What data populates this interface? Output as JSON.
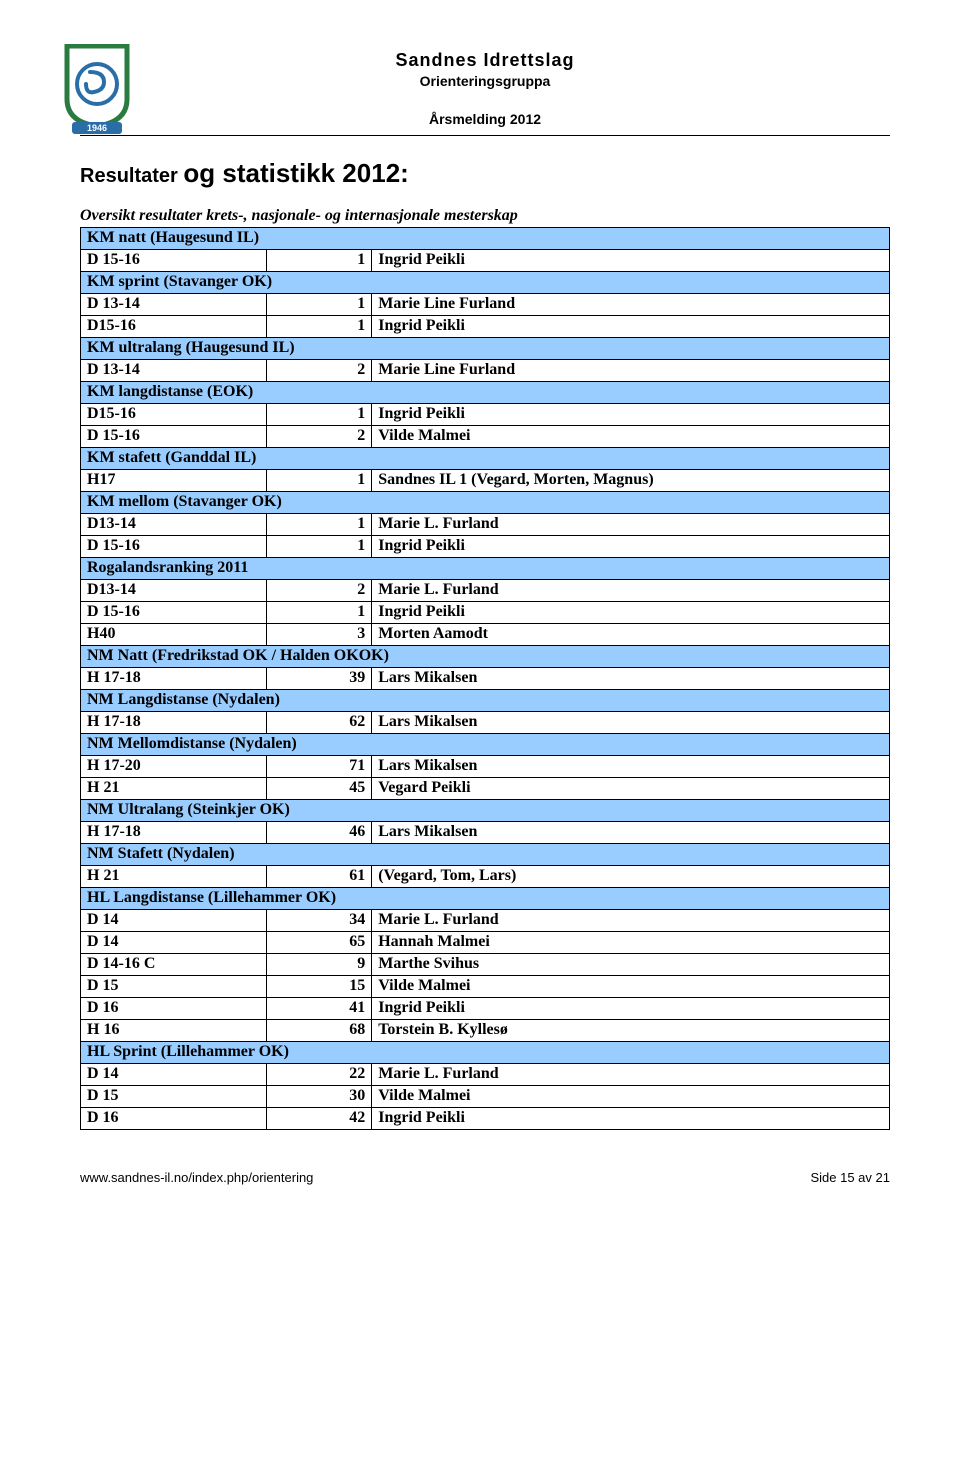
{
  "colors": {
    "section_bg": "#99ccff",
    "border": "#000000",
    "text": "#000000",
    "background": "#ffffff",
    "logo_green": "#2a7b3f",
    "logo_blue": "#2a6ea8",
    "logo_ribbon": "#2a6ea8"
  },
  "header": {
    "org": "Sandnes Idrettslag",
    "sub": "Orienteringsgruppa",
    "report": "Årsmelding 2012",
    "logo_year": "1946"
  },
  "title_small": "Resultater ",
  "title_big": "og statistikk 2012:",
  "subtitle": "Oversikt resultater krets-, nasjonale- og internasjonale mesterskap",
  "rows": [
    {
      "type": "section",
      "label": "KM natt (Haugesund IL)"
    },
    {
      "type": "data",
      "c1": "D 15-16",
      "c2": "1",
      "c3": "Ingrid Peikli"
    },
    {
      "type": "section",
      "label": "KM sprint (Stavanger OK)"
    },
    {
      "type": "data",
      "c1": "D 13-14",
      "c2": "1",
      "c3": "Marie Line Furland"
    },
    {
      "type": "data",
      "c1": "D15-16",
      "c2": "1",
      "c3": "Ingrid Peikli"
    },
    {
      "type": "section",
      "label": "KM ultralang (Haugesund IL)"
    },
    {
      "type": "data",
      "c1": "D 13-14",
      "c2": "2",
      "c3": "Marie Line Furland"
    },
    {
      "type": "section",
      "label": "KM langdistanse (EOK)"
    },
    {
      "type": "data",
      "c1": "D15-16",
      "c2": "1",
      "c3": "Ingrid Peikli"
    },
    {
      "type": "data",
      "c1": "D 15-16",
      "c2": "2",
      "c3": "Vilde Malmei"
    },
    {
      "type": "section",
      "label": "KM stafett (Ganddal IL)"
    },
    {
      "type": "data",
      "c1": "H17",
      "c2": "1",
      "c3": "Sandnes IL 1 (Vegard, Morten, Magnus)"
    },
    {
      "type": "section",
      "label": "KM mellom (Stavanger OK)"
    },
    {
      "type": "data",
      "c1": "D13-14",
      "c2": "1",
      "c3": "Marie L. Furland"
    },
    {
      "type": "data",
      "c1": "D 15-16",
      "c2": "1",
      "c3": "Ingrid Peikli"
    },
    {
      "type": "section",
      "label": "Rogalandsranking 2011"
    },
    {
      "type": "data",
      "c1": "D13-14",
      "c2": "2",
      "c3": "Marie L. Furland"
    },
    {
      "type": "data",
      "c1": "D 15-16",
      "c2": "1",
      "c3": "Ingrid Peikli"
    },
    {
      "type": "data",
      "c1": "H40",
      "c2": "3",
      "c3": "Morten Aamodt"
    },
    {
      "type": "section",
      "label": "NM Natt (Fredrikstad OK / Halden OKOK)"
    },
    {
      "type": "data",
      "c1": "H 17-18",
      "c2": "39",
      "c3": "Lars Mikalsen"
    },
    {
      "type": "section",
      "label": "NM Langdistanse (Nydalen)"
    },
    {
      "type": "data",
      "c1": "H 17-18",
      "c2": "62",
      "c3": "Lars Mikalsen"
    },
    {
      "type": "section",
      "label": "NM Mellomdistanse (Nydalen)"
    },
    {
      "type": "data",
      "c1": "H 17-20",
      "c2": "71",
      "c3": "Lars Mikalsen"
    },
    {
      "type": "data",
      "c1": "H 21",
      "c2": "45",
      "c3": "Vegard Peikli"
    },
    {
      "type": "section",
      "label": "NM Ultralang (Steinkjer OK)"
    },
    {
      "type": "data",
      "c1": "H 17-18",
      "c2": "46",
      "c3": "Lars Mikalsen"
    },
    {
      "type": "section",
      "label": "NM Stafett (Nydalen)"
    },
    {
      "type": "data",
      "c1": "H 21",
      "c2": "61",
      "c3": "(Vegard, Tom, Lars)"
    },
    {
      "type": "section",
      "label": "HL Langdistanse (Lillehammer OK)"
    },
    {
      "type": "data",
      "c1": "D 14",
      "c2": "34",
      "c3": "Marie L. Furland"
    },
    {
      "type": "data",
      "c1": "D 14",
      "c2": "65",
      "c3": "Hannah Malmei"
    },
    {
      "type": "data",
      "c1": "D 14-16 C",
      "c2": "9",
      "c3": "Marthe Svihus"
    },
    {
      "type": "data",
      "c1": "D 15",
      "c2": "15",
      "c3": "Vilde Malmei"
    },
    {
      "type": "data",
      "c1": "D 16",
      "c2": "41",
      "c3": "Ingrid Peikli"
    },
    {
      "type": "data",
      "c1": "H 16",
      "c2": "68",
      "c3": "Torstein B. Kyllesø"
    },
    {
      "type": "section",
      "label": "HL Sprint (Lillehammer OK)"
    },
    {
      "type": "data",
      "c1": "D 14",
      "c2": "22",
      "c3": "Marie L. Furland"
    },
    {
      "type": "data",
      "c1": "D 15",
      "c2": "30",
      "c3": "Vilde Malmei"
    },
    {
      "type": "data",
      "c1": "D 16",
      "c2": "42",
      "c3": "Ingrid Peikli"
    }
  ],
  "footer": {
    "url": "www.sandnes-il.no/index.php/orientering",
    "page": "Side 15 av 21"
  }
}
